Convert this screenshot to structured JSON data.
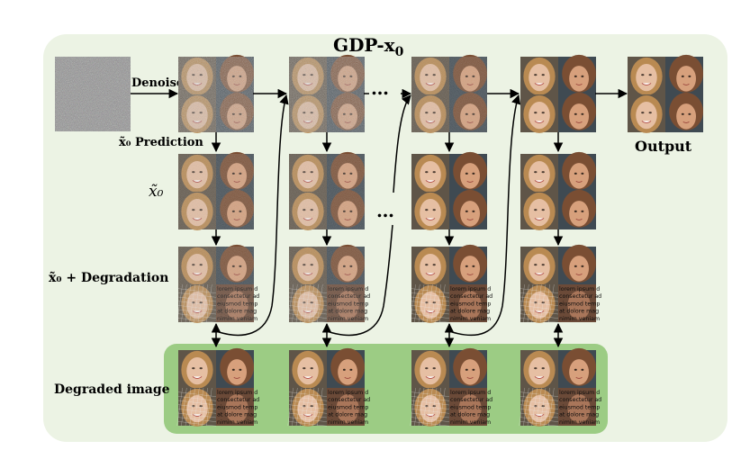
{
  "title_main": "GDP-x",
  "title_sub": "0",
  "labels": {
    "denoise": "Denoise",
    "x0_prediction": "x̃₀ Prediction",
    "x0": "x̃₀",
    "x0_degradation": "x̃₀ + Degradation",
    "degraded_image": "Degraded image",
    "output": "Output"
  },
  "ellipsis": "…",
  "degradation_text": [
    "lorem ipsum d",
    "consectetur ad",
    "eiusmod temp",
    "at dolore mag",
    "nimim veniam"
  ],
  "colors": {
    "panel": "#ecf3e4",
    "degraded_box": "#9ccc84",
    "arrow": "#000000"
  }
}
